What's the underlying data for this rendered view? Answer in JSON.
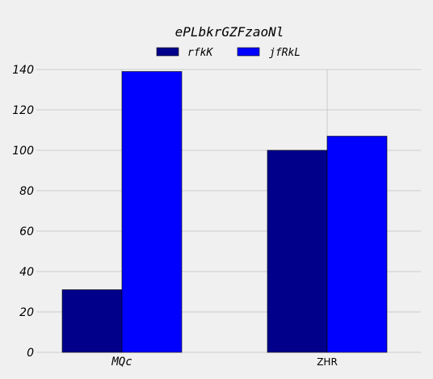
{
  "chart_data": {
    "type": "bar",
    "title": "ePLbkrGZFzaoNl",
    "xlabel": "",
    "ylabel": "",
    "categories": [
      "MQc",
      "ZHR"
    ],
    "series": [
      {
        "name": "rfkK",
        "values": [
          31,
          100
        ],
        "color": "#00008b"
      },
      {
        "name": "jfRkL",
        "values": [
          139,
          107
        ],
        "color": "#0000ff"
      }
    ],
    "ylim": [
      0,
      140
    ],
    "yticks": [
      0,
      20,
      40,
      60,
      80,
      100,
      120,
      140
    ],
    "grid": true,
    "legend_position": "top"
  }
}
